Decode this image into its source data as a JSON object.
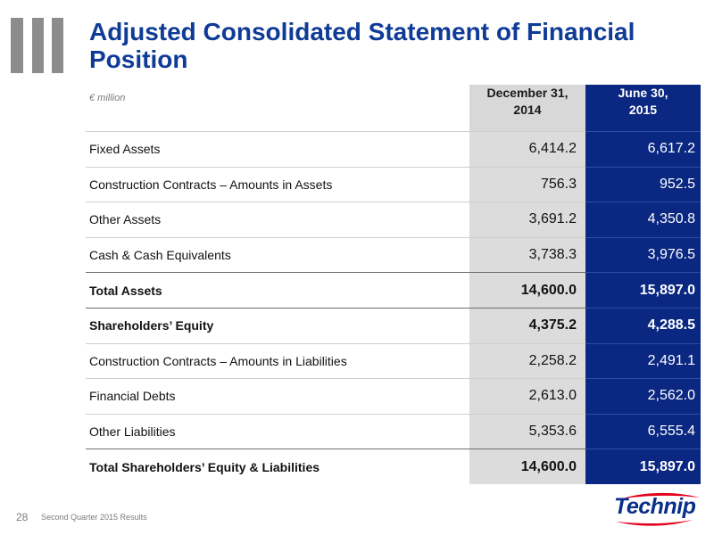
{
  "slide": {
    "title": "Adjusted Consolidated Statement of Financial Position",
    "unit": "€ million",
    "columns": {
      "dec_line1": "December 31,",
      "dec_line2": "2014",
      "jun_line1": "June 30,",
      "jun_line2": "2015"
    },
    "rows": [
      {
        "label": "Fixed Assets",
        "dec": "6,414.2",
        "jun": "6,617.2"
      },
      {
        "label": "Construction Contracts – Amounts in Assets",
        "dec": "756.3",
        "jun": "952.5"
      },
      {
        "label": "Other Assets",
        "dec": "3,691.2",
        "jun": "4,350.8"
      },
      {
        "label": "Cash & Cash Equivalents",
        "dec": "3,738.3",
        "jun": "3,976.5"
      },
      {
        "label": "Total Assets",
        "dec": "14,600.0",
        "jun": "15,897.0"
      },
      {
        "label": "Shareholders’ Equity",
        "dec": "4,375.2",
        "jun": "4,288.5"
      },
      {
        "label": "Construction Contracts – Amounts in Liabilities",
        "dec": "2,258.2",
        "jun": "2,491.1"
      },
      {
        "label": "Financial Debts",
        "dec": "2,613.0",
        "jun": "2,562.0"
      },
      {
        "label": "Other Liabilities",
        "dec": "5,353.6",
        "jun": "6,555.4"
      },
      {
        "label": "Total Shareholders’ Equity & Liabilities",
        "dec": "14,600.0",
        "jun": "15,897.0"
      }
    ],
    "footer": {
      "page_number": "28",
      "text": "Second Quarter 2015 Results"
    },
    "logo": {
      "text": "Technip",
      "color": "#0a2f8a",
      "swoosh_color": "#e3001b"
    }
  }
}
